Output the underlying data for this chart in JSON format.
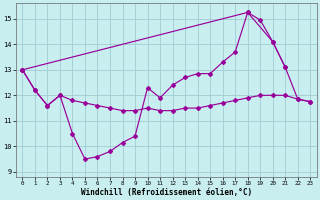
{
  "xlabel": "Windchill (Refroidissement éolien,°C)",
  "xlim": [
    -0.5,
    23.5
  ],
  "ylim": [
    8.8,
    15.6
  ],
  "yticks": [
    9,
    10,
    11,
    12,
    13,
    14,
    15
  ],
  "xticks": [
    0,
    1,
    2,
    3,
    4,
    5,
    6,
    7,
    8,
    9,
    10,
    11,
    12,
    13,
    14,
    15,
    16,
    17,
    18,
    19,
    20,
    21,
    22,
    23
  ],
  "background_color": "#c8eef0",
  "grid_color": "#a0ccd4",
  "line_color": "#990099",
  "line1_x": [
    0,
    1,
    2,
    3,
    4,
    5,
    6,
    7,
    8,
    9,
    10,
    11,
    12,
    13,
    14,
    15,
    16,
    17,
    18,
    19,
    20,
    21,
    22,
    23
  ],
  "line1_y": [
    13.0,
    12.2,
    11.6,
    12.0,
    11.8,
    11.7,
    11.6,
    11.5,
    11.4,
    11.4,
    11.5,
    11.4,
    11.4,
    11.5,
    11.5,
    11.6,
    11.7,
    11.8,
    11.9,
    12.0,
    12.0,
    12.0,
    11.85,
    11.75
  ],
  "line2_x": [
    0,
    1,
    2,
    3,
    4,
    5,
    6,
    7,
    8,
    9,
    10,
    11,
    12,
    13,
    14,
    15,
    16,
    17,
    18,
    19,
    20,
    21
  ],
  "line2_y": [
    13.0,
    12.2,
    11.6,
    12.0,
    10.5,
    9.5,
    9.6,
    9.8,
    10.15,
    10.4,
    12.3,
    11.9,
    12.4,
    12.7,
    12.85,
    12.85,
    13.3,
    13.7,
    15.25,
    14.95,
    14.1,
    13.1
  ],
  "line3_x": [
    0,
    18,
    20,
    21,
    22,
    23
  ],
  "line3_y": [
    13.0,
    15.25,
    14.1,
    13.1,
    11.85,
    11.75
  ]
}
